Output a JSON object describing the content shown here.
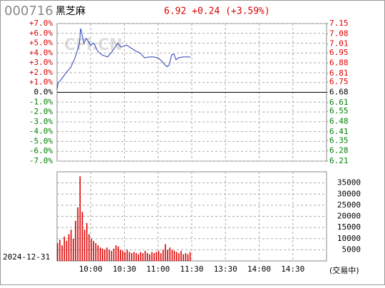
{
  "header": {
    "code": "000716",
    "name": "黑芝麻",
    "quote": "6.92 +0.24 (+3.59%)",
    "watermark": "CFi.CN"
  },
  "date": "2024-12-31",
  "status": "(交易中)",
  "chart_data": [
    {
      "type": "line",
      "color": "#2a3fb8",
      "x": [
        "09:30",
        "09:31",
        "09:33",
        "09:35",
        "09:38",
        "09:42",
        "09:44",
        "09:46",
        "09:48",
        "09:50",
        "09:51",
        "09:52",
        "09:54",
        "09:56",
        "10:00",
        "10:03",
        "10:06",
        "10:10",
        "10:15",
        "10:18",
        "10:20",
        "10:24",
        "10:27",
        "10:32",
        "10:36",
        "10:40",
        "10:44",
        "10:48",
        "10:52",
        "10:56",
        "11:00",
        "11:03",
        "11:06",
        "11:08",
        "11:10",
        "11:12",
        "11:14",
        "11:16",
        "11:18",
        "11:22",
        "11:27",
        "11:29"
      ],
      "values": [
        0.3,
        1.0,
        1.2,
        1.5,
        2.0,
        2.5,
        3.0,
        3.5,
        4.2,
        5.0,
        6.5,
        6.0,
        5.0,
        5.5,
        4.8,
        5.0,
        4.2,
        3.8,
        3.6,
        4.0,
        4.3,
        5.0,
        4.6,
        4.8,
        4.5,
        4.2,
        4.0,
        3.5,
        3.6,
        3.6,
        3.5,
        3.2,
        2.8,
        2.6,
        2.8,
        3.8,
        3.9,
        3.3,
        3.5,
        3.6,
        3.6,
        3.59
      ],
      "xlim": [
        "09:30",
        "15:00"
      ],
      "xticks": [
        "10:00",
        "10:30",
        "11:00",
        "11:30",
        "13:30",
        "14:00",
        "14:30"
      ],
      "ylim": [
        -7,
        7
      ],
      "yticks": [
        {
          "value": 7,
          "label": "+7.0%"
        },
        {
          "value": 6,
          "label": "+6.0%"
        },
        {
          "value": 5,
          "label": "+5.0%"
        },
        {
          "value": 4,
          "label": "+4.0%"
        },
        {
          "value": 3,
          "label": "+3.0%"
        },
        {
          "value": 2,
          "label": "+2.0%"
        },
        {
          "value": 1,
          "label": "+1.0%"
        },
        {
          "value": 0,
          "label": "0.0%"
        },
        {
          "value": -1,
          "label": "-1.0%"
        },
        {
          "value": -2,
          "label": "-2.0%"
        },
        {
          "value": -3,
          "label": "-3.0%"
        },
        {
          "value": -4,
          "label": "-4.0%"
        },
        {
          "value": -5,
          "label": "-5.0%"
        },
        {
          "value": -6,
          "label": "-6.0%"
        },
        {
          "value": -7,
          "label": "-7.0%"
        }
      ],
      "y2lim": [
        6.21,
        7.15
      ],
      "y2ticks": [
        7.15,
        7.08,
        7.01,
        6.95,
        6.88,
        6.81,
        6.75,
        6.68,
        6.61,
        6.55,
        6.48,
        6.41,
        6.35,
        6.28,
        6.21
      ],
      "grid": true
    },
    {
      "type": "bar",
      "color": "#dd0000",
      "x": [
        "09:30",
        "09:32",
        "09:34",
        "09:36",
        "09:38",
        "09:40",
        "09:42",
        "09:44",
        "09:46",
        "09:48",
        "09:50",
        "09:52",
        "09:54",
        "09:56",
        "09:58",
        "10:00",
        "10:02",
        "10:04",
        "10:06",
        "10:08",
        "10:10",
        "10:12",
        "10:14",
        "10:16",
        "10:18",
        "10:20",
        "10:22",
        "10:24",
        "10:26",
        "10:28",
        "10:30",
        "10:32",
        "10:34",
        "10:36",
        "10:38",
        "10:40",
        "10:42",
        "10:44",
        "10:46",
        "10:48",
        "10:50",
        "10:52",
        "10:54",
        "10:56",
        "10:58",
        "11:00",
        "11:02",
        "11:04",
        "11:06",
        "11:08",
        "11:10",
        "11:12",
        "11:14",
        "11:16",
        "11:18",
        "11:20",
        "11:22",
        "11:24",
        "11:26",
        "11:28"
      ],
      "values": [
        8000,
        9500,
        7000,
        11000,
        9000,
        12000,
        14000,
        10000,
        18000,
        24000,
        38000,
        22000,
        14000,
        17000,
        12000,
        10000,
        9000,
        8000,
        7000,
        6000,
        5500,
        5000,
        6000,
        5000,
        4500,
        5500,
        7000,
        6500,
        5000,
        4500,
        4000,
        5000,
        4000,
        3500,
        4000,
        3500,
        3000,
        4000,
        3500,
        4500,
        3500,
        3000,
        4000,
        3500,
        4000,
        4500,
        3500,
        5000,
        7500,
        5000,
        6000,
        5000,
        4500,
        4000,
        3500,
        4500,
        3000,
        3500,
        3000,
        4000
      ],
      "xlim": [
        "09:30",
        "15:00"
      ],
      "xticks": [
        "10:00",
        "10:30",
        "11:00",
        "11:30",
        "13:30",
        "14:00",
        "14:30"
      ],
      "ylim": [
        0,
        40000
      ],
      "yticks": [
        5000,
        10000,
        15000,
        20000,
        25000,
        30000,
        35000
      ],
      "grid": true
    }
  ]
}
